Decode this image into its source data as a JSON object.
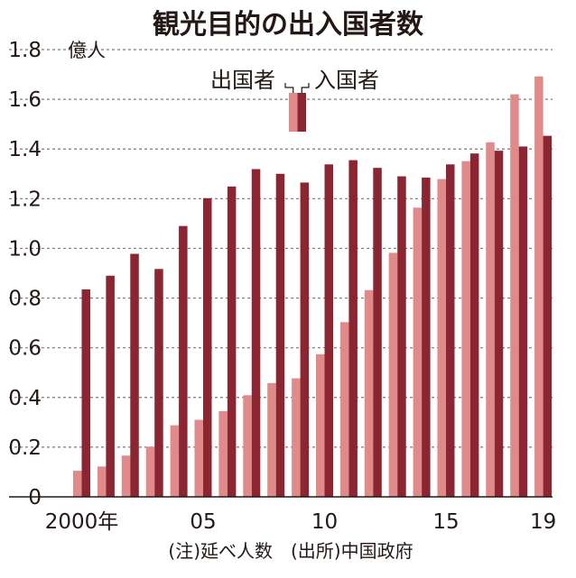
{
  "chart_data": {
    "type": "bar",
    "title": "観光目的の出入国者数",
    "unit": "億人",
    "note": "(注)延べ人数　(出所)中国政府",
    "categories": [
      "2000",
      "2001",
      "2002",
      "2003",
      "2004",
      "2005",
      "2006",
      "2007",
      "2008",
      "2009",
      "2010",
      "2011",
      "2012",
      "2013",
      "2014",
      "2015",
      "2016",
      "2017",
      "2018",
      "2019"
    ],
    "x_tick_labels": [
      {
        "category": "2000",
        "label": "2000年"
      },
      {
        "category": "2005",
        "label": "05"
      },
      {
        "category": "2010",
        "label": "10"
      },
      {
        "category": "2015",
        "label": "15"
      },
      {
        "category": "2019",
        "label": "19"
      }
    ],
    "ylim": [
      0,
      1.8
    ],
    "yticks": [
      "0",
      "0.2",
      "0.4",
      "0.6",
      "0.8",
      "1.0",
      "1.2",
      "1.4",
      "1.6",
      "1.8"
    ],
    "grid": true,
    "legend_position": "top-center",
    "series": [
      {
        "name": "出国者",
        "color": "#e08a8a",
        "values": [
          0.105,
          0.122,
          0.166,
          0.202,
          0.288,
          0.31,
          0.345,
          0.409,
          0.458,
          0.477,
          0.574,
          0.703,
          0.832,
          0.982,
          1.164,
          1.279,
          1.351,
          1.427,
          1.62,
          1.692
        ]
      },
      {
        "name": "入国者",
        "color": "#8b2532",
        "values": [
          0.835,
          0.89,
          0.978,
          0.917,
          1.09,
          1.202,
          1.249,
          1.319,
          1.3,
          1.265,
          1.338,
          1.355,
          1.324,
          1.29,
          1.285,
          1.338,
          1.382,
          1.393,
          1.41,
          1.453
        ]
      }
    ]
  }
}
